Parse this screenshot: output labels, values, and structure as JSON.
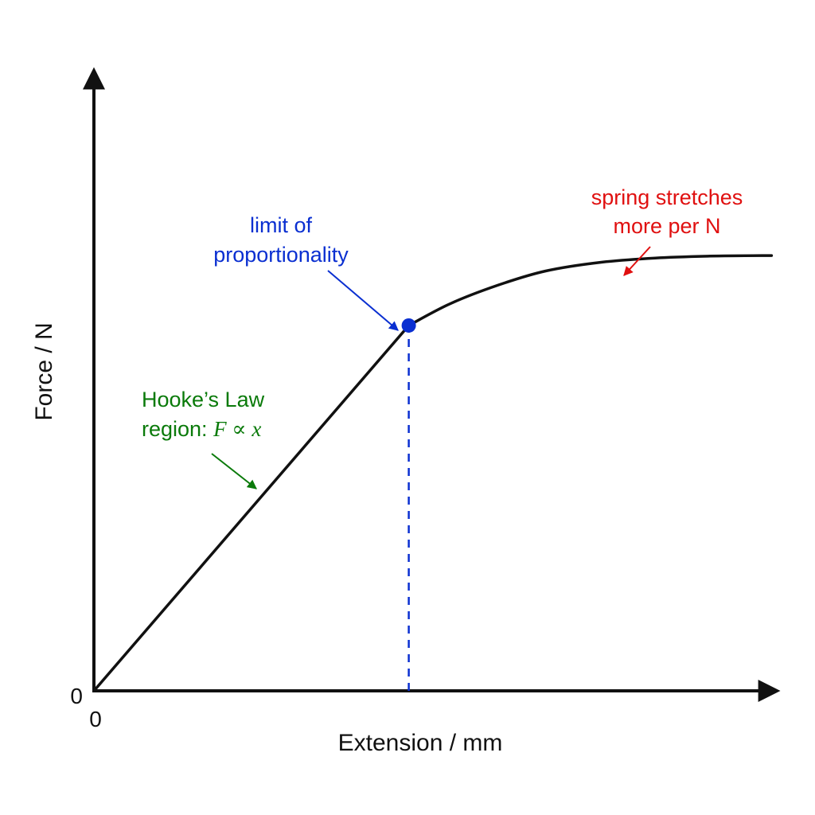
{
  "chart_data": {
    "type": "line",
    "title": "",
    "xlabel": "Extension / mm",
    "ylabel": "Force / N",
    "x_tick_labels": [
      "0"
    ],
    "y_tick_labels": [
      "0"
    ],
    "xlim": [
      0,
      10
    ],
    "ylim": [
      0,
      10
    ],
    "grid": false,
    "series": [
      {
        "color": "#111111",
        "points": [
          [
            0,
            0
          ],
          [
            4.6,
            5.9
          ],
          [
            5.2,
            6.25
          ],
          [
            5.9,
            6.55
          ],
          [
            6.6,
            6.78
          ],
          [
            7.4,
            6.92
          ],
          [
            8.2,
            6.99
          ],
          [
            9.0,
            7.02
          ],
          [
            9.9,
            7.03
          ]
        ]
      }
    ],
    "markers": [
      {
        "x": 4.6,
        "y": 5.9,
        "color": "#0a2fd1"
      }
    ],
    "reference_lines": [
      {
        "orientation": "vertical",
        "x": 4.6,
        "from_y": 0,
        "to_y": 5.9,
        "style": "dashed",
        "color": "#0a2fd1"
      }
    ],
    "annotations": [
      {
        "id": "hooke",
        "lines": [
          "Hooke’s Law",
          "region: "
        ],
        "math": "F ∝ x",
        "color": "#0a7a0a",
        "points_to": [
          2.35,
          3.0
        ]
      },
      {
        "id": "limit",
        "lines": [
          "limit of",
          "proportionality"
        ],
        "color": "#0a2fd1",
        "points_to": [
          4.6,
          5.9
        ]
      },
      {
        "id": "stretch",
        "lines": [
          "spring stretches",
          "more per N"
        ],
        "color": "#e01010",
        "points_to": [
          7.7,
          6.95
        ]
      }
    ]
  }
}
